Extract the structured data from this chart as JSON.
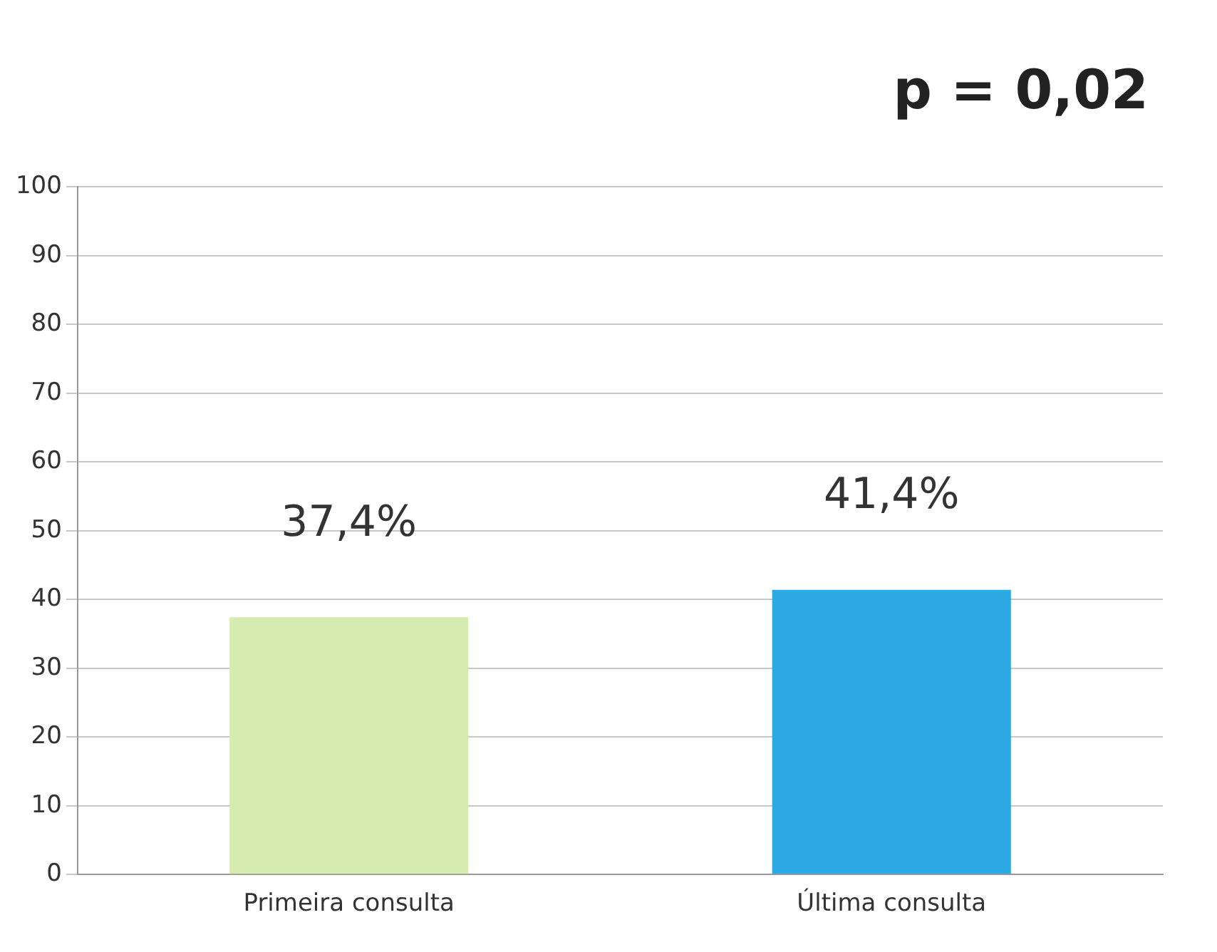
{
  "chart_data": {
    "type": "bar",
    "categories": [
      "Primeira consulta",
      "Última consulta"
    ],
    "values": [
      37.4,
      41.4
    ],
    "colors": [
      "#d6ebb0",
      "#2aa9e2"
    ],
    "value_labels": [
      "37,4%",
      "41,4%"
    ],
    "ylim": [
      0,
      100
    ],
    "yticks": [
      0,
      10,
      20,
      30,
      40,
      50,
      60,
      70,
      80,
      90,
      100
    ],
    "grid": "y",
    "legend": false,
    "annotations": [
      "p = 0,02"
    ]
  }
}
